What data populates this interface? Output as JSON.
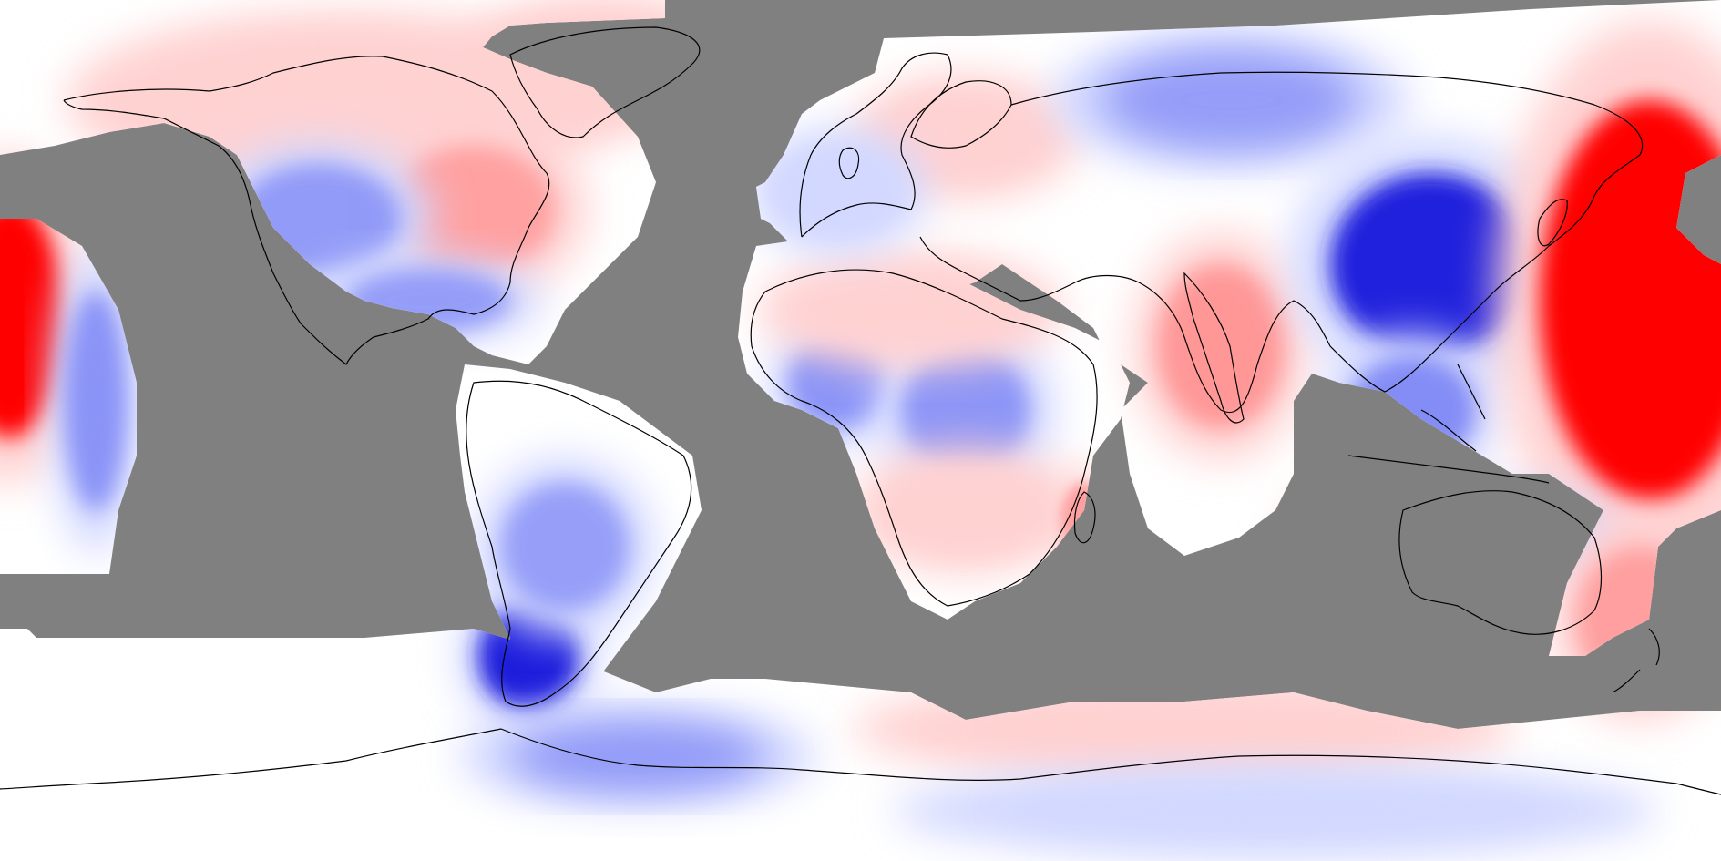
{
  "map": {
    "projection": "equirectangular",
    "no_data_color": "#808080",
    "colors": {
      "strong_positive": "#ff0000",
      "positive": "#ff8c8c",
      "weak_positive": "#ffd2d2",
      "neutral": "#ffffff",
      "weak_negative": "#d2d8ff",
      "negative": "#7d86f5",
      "strong_negative": "#1a1adc",
      "coastline": "#000000"
    },
    "anomalies": [
      {
        "region": "greenland",
        "sign": "positive",
        "level": 0.4
      },
      {
        "region": "northern-canada",
        "sign": "positive",
        "level": 0.3
      },
      {
        "region": "eastern-usa",
        "sign": "positive",
        "level": 0.45
      },
      {
        "region": "western-usa",
        "sign": "negative",
        "level": 0.55
      },
      {
        "region": "central-america",
        "sign": "negative",
        "level": 0.5
      },
      {
        "region": "patagonia",
        "sign": "negative",
        "level": 1.0
      },
      {
        "region": "south-america-central",
        "sign": "negative",
        "level": 0.45
      },
      {
        "region": "west-africa",
        "sign": "negative",
        "level": 0.7
      },
      {
        "region": "central-africa",
        "sign": "negative",
        "level": 0.65
      },
      {
        "region": "north-africa",
        "sign": "positive",
        "level": 0.3
      },
      {
        "region": "southern-africa",
        "sign": "positive",
        "level": 0.3
      },
      {
        "region": "madagascar",
        "sign": "positive",
        "level": 0.5
      },
      {
        "region": "scandinavia",
        "sign": "positive",
        "level": 0.3
      },
      {
        "region": "western-europe",
        "sign": "negative",
        "level": 0.4
      },
      {
        "region": "siberia",
        "sign": "negative",
        "level": 0.5
      },
      {
        "region": "india",
        "sign": "positive",
        "level": 0.7
      },
      {
        "region": "east-china",
        "sign": "negative",
        "level": 0.95
      },
      {
        "region": "southeast-asia",
        "sign": "negative",
        "level": 0.85
      },
      {
        "region": "northwest-pacific",
        "sign": "positive",
        "level": 1.0
      },
      {
        "region": "northeast-pacific-west",
        "sign": "positive",
        "level": 1.0
      },
      {
        "region": "northeast-pacific-band",
        "sign": "negative",
        "level": 0.7
      },
      {
        "region": "western-australia",
        "sign": "positive",
        "level": 0.4
      },
      {
        "region": "central-australia",
        "sign": "negative",
        "level": 0.35
      },
      {
        "region": "new-zealand",
        "sign": "positive",
        "level": 0.5
      },
      {
        "region": "west-antarctica",
        "sign": "negative",
        "level": 0.55
      },
      {
        "region": "east-antarctica",
        "sign": "positive",
        "level": 0.35
      },
      {
        "region": "southern-ocean-band",
        "sign": "negative",
        "level": 0.3
      }
    ]
  }
}
